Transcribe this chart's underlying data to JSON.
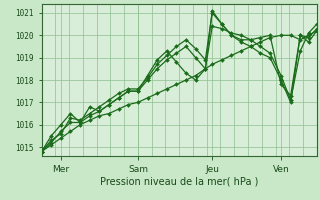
{
  "background_color": "#c8e8c8",
  "plot_bg_color": "#d8eed8",
  "grid_color": "#90c090",
  "line_color": "#1a6b1a",
  "marker_color": "#1a6b1a",
  "ylabel_ticks": [
    1015,
    1016,
    1017,
    1018,
    1019,
    1020,
    1021
  ],
  "ylim": [
    1014.6,
    1021.4
  ],
  "xlim": [
    0,
    1
  ],
  "xlabel": "Pression niveau de la mer( hPa )",
  "day_labels": [
    "Mer",
    "Sam",
    "Jeu",
    "Ven"
  ],
  "day_positions": [
    0.07,
    0.35,
    0.62,
    0.87
  ],
  "num_vert_grid": 20,
  "series": [
    {
      "x": [
        0.0,
        0.035,
        0.07,
        0.105,
        0.14,
        0.175,
        0.21,
        0.245,
        0.28,
        0.315,
        0.35,
        0.385,
        0.42,
        0.455,
        0.49,
        0.525,
        0.56,
        0.595,
        0.62,
        0.655,
        0.69,
        0.725,
        0.76,
        0.795,
        0.83,
        0.87,
        0.905,
        0.94,
        0.97,
        1.0
      ],
      "y": [
        1014.8,
        1015.1,
        1015.4,
        1015.7,
        1016.0,
        1016.2,
        1016.4,
        1016.5,
        1016.7,
        1016.9,
        1017.0,
        1017.2,
        1017.4,
        1017.6,
        1017.8,
        1018.0,
        1018.2,
        1018.5,
        1018.7,
        1018.9,
        1019.1,
        1019.3,
        1019.5,
        1019.7,
        1019.9,
        1020.0,
        1020.0,
        1019.8,
        1020.0,
        1020.2
      ]
    },
    {
      "x": [
        0.0,
        0.035,
        0.07,
        0.105,
        0.14,
        0.175,
        0.21,
        0.245,
        0.28,
        0.315,
        0.35,
        0.385,
        0.42,
        0.455,
        0.49,
        0.525,
        0.56,
        0.595,
        0.62,
        0.655,
        0.69,
        0.725,
        0.76,
        0.795,
        0.83,
        0.87,
        0.905,
        0.94,
        0.97,
        1.0
      ],
      "y": [
        1014.8,
        1015.2,
        1015.7,
        1016.1,
        1016.1,
        1016.4,
        1016.6,
        1016.9,
        1017.2,
        1017.5,
        1017.5,
        1018.0,
        1018.5,
        1018.9,
        1019.2,
        1019.5,
        1019.0,
        1018.5,
        1021.1,
        1020.5,
        1020.0,
        1019.8,
        1019.8,
        1019.9,
        1020.0,
        1017.8,
        1017.3,
        1020.0,
        1019.7,
        1020.2
      ]
    },
    {
      "x": [
        0.0,
        0.035,
        0.07,
        0.105,
        0.14,
        0.175,
        0.21,
        0.245,
        0.28,
        0.315,
        0.35,
        0.385,
        0.42,
        0.455,
        0.49,
        0.525,
        0.56,
        0.595,
        0.62,
        0.655,
        0.69,
        0.725,
        0.76,
        0.795,
        0.83,
        0.87,
        0.905,
        0.94,
        0.97,
        1.0
      ],
      "y": [
        1014.8,
        1015.3,
        1015.6,
        1016.3,
        1016.2,
        1016.5,
        1016.8,
        1017.1,
        1017.4,
        1017.6,
        1017.6,
        1018.1,
        1018.7,
        1019.1,
        1019.5,
        1019.8,
        1019.4,
        1018.9,
        1021.0,
        1020.5,
        1020.0,
        1019.7,
        1019.5,
        1019.2,
        1019.0,
        1018.0,
        1017.0,
        1020.0,
        1019.9,
        1020.3
      ]
    },
    {
      "x": [
        0.0,
        0.035,
        0.07,
        0.105,
        0.14,
        0.175,
        0.21,
        0.245,
        0.28,
        0.315,
        0.35,
        0.385,
        0.42,
        0.455,
        0.49,
        0.525,
        0.56,
        0.595,
        0.62,
        0.655,
        0.69,
        0.725,
        0.76,
        0.795,
        0.83,
        0.87,
        0.905,
        0.94,
        0.97,
        1.0
      ],
      "y": [
        1014.8,
        1015.5,
        1016.0,
        1016.5,
        1016.1,
        1016.8,
        1016.6,
        1016.9,
        1017.2,
        1017.5,
        1017.5,
        1018.2,
        1018.9,
        1019.3,
        1018.8,
        1018.3,
        1018.0,
        1018.5,
        1020.4,
        1020.3,
        1020.1,
        1020.0,
        1019.8,
        1019.5,
        1019.2,
        1018.2,
        1017.1,
        1019.3,
        1020.1,
        1020.5
      ]
    }
  ]
}
